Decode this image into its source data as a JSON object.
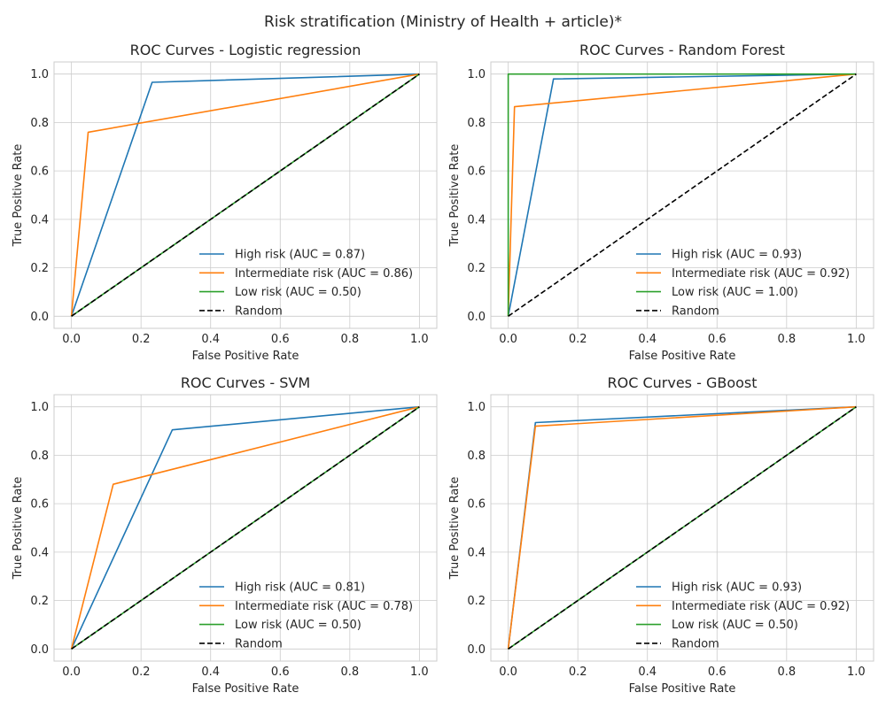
{
  "figure": {
    "suptitle": "Risk stratification (Ministry of Health + article)*"
  },
  "chart_data": [
    {
      "type": "line",
      "title": "ROC Curves - Logistic regression",
      "xlabel": "False Positive Rate",
      "ylabel": "True Positive Rate",
      "xlim": [
        -0.05,
        1.05
      ],
      "ylim": [
        -0.05,
        1.05
      ],
      "xticks": [
        "0.0",
        "0.2",
        "0.4",
        "0.6",
        "0.8",
        "1.0"
      ],
      "yticks": [
        "0.0",
        "0.2",
        "0.4",
        "0.6",
        "0.8",
        "1.0"
      ],
      "grid": true,
      "legend": "lower right",
      "series": [
        {
          "name": "High risk (AUC = 0.87)",
          "color": "#1f77b4",
          "x": [
            0,
            0.232,
            1
          ],
          "y": [
            0,
            0.966,
            1
          ]
        },
        {
          "name": "Intermediate risk (AUC = 0.86)",
          "color": "#ff7f0e",
          "x": [
            0,
            0.048,
            1
          ],
          "y": [
            0,
            0.76,
            1
          ]
        },
        {
          "name": "Low risk (AUC = 0.50)",
          "color": "#2ca02c",
          "x": [
            0,
            1
          ],
          "y": [
            0,
            1
          ]
        },
        {
          "name": "Random",
          "color": "#000000",
          "dashed": true,
          "x": [
            0,
            1
          ],
          "y": [
            0,
            1
          ]
        }
      ]
    },
    {
      "type": "line",
      "title": "ROC Curves - Random Forest",
      "xlabel": "False Positive Rate",
      "ylabel": "True Positive Rate",
      "xlim": [
        -0.05,
        1.05
      ],
      "ylim": [
        -0.05,
        1.05
      ],
      "xticks": [
        "0.0",
        "0.2",
        "0.4",
        "0.6",
        "0.8",
        "1.0"
      ],
      "yticks": [
        "0.0",
        "0.2",
        "0.4",
        "0.6",
        "0.8",
        "1.0"
      ],
      "grid": true,
      "legend": "lower right",
      "series": [
        {
          "name": "High risk (AUC = 0.93)",
          "color": "#1f77b4",
          "x": [
            0,
            0.13,
            1
          ],
          "y": [
            0,
            0.98,
            1
          ]
        },
        {
          "name": "Intermediate risk (AUC = 0.92)",
          "color": "#ff7f0e",
          "x": [
            0,
            0.018,
            1
          ],
          "y": [
            0,
            0.865,
            1
          ]
        },
        {
          "name": "Low risk (AUC = 1.00)",
          "color": "#2ca02c",
          "x": [
            0,
            0,
            1
          ],
          "y": [
            0,
            1,
            1
          ]
        },
        {
          "name": "Random",
          "color": "#000000",
          "dashed": true,
          "x": [
            0,
            1
          ],
          "y": [
            0,
            1
          ]
        }
      ]
    },
    {
      "type": "line",
      "title": "ROC Curves - SVM",
      "xlabel": "False Positive Rate",
      "ylabel": "True Positive Rate",
      "xlim": [
        -0.05,
        1.05
      ],
      "ylim": [
        -0.05,
        1.05
      ],
      "xticks": [
        "0.0",
        "0.2",
        "0.4",
        "0.6",
        "0.8",
        "1.0"
      ],
      "yticks": [
        "0.0",
        "0.2",
        "0.4",
        "0.6",
        "0.8",
        "1.0"
      ],
      "grid": true,
      "legend": "lower right",
      "series": [
        {
          "name": "High risk (AUC = 0.81)",
          "color": "#1f77b4",
          "x": [
            0,
            0.29,
            1
          ],
          "y": [
            0,
            0.905,
            1
          ]
        },
        {
          "name": "Intermediate risk (AUC = 0.78)",
          "color": "#ff7f0e",
          "x": [
            0,
            0.12,
            1
          ],
          "y": [
            0,
            0.68,
            1
          ]
        },
        {
          "name": "Low risk (AUC = 0.50)",
          "color": "#2ca02c",
          "x": [
            0,
            1
          ],
          "y": [
            0,
            1
          ]
        },
        {
          "name": "Random",
          "color": "#000000",
          "dashed": true,
          "x": [
            0,
            1
          ],
          "y": [
            0,
            1
          ]
        }
      ]
    },
    {
      "type": "line",
      "title": "ROC Curves - GBoost",
      "xlabel": "False Positive Rate",
      "ylabel": "True Positive Rate",
      "xlim": [
        -0.05,
        1.05
      ],
      "ylim": [
        -0.05,
        1.05
      ],
      "xticks": [
        "0.0",
        "0.2",
        "0.4",
        "0.6",
        "0.8",
        "1.0"
      ],
      "yticks": [
        "0.0",
        "0.2",
        "0.4",
        "0.6",
        "0.8",
        "1.0"
      ],
      "grid": true,
      "legend": "lower right",
      "series": [
        {
          "name": "High risk (AUC = 0.93)",
          "color": "#1f77b4",
          "x": [
            0,
            0.078,
            1
          ],
          "y": [
            0,
            0.935,
            1
          ]
        },
        {
          "name": "Intermediate risk (AUC = 0.92)",
          "color": "#ff7f0e",
          "x": [
            0,
            0.078,
            1
          ],
          "y": [
            0,
            0.92,
            1
          ]
        },
        {
          "name": "Low risk (AUC = 0.50)",
          "color": "#2ca02c",
          "x": [
            0,
            1
          ],
          "y": [
            0,
            1
          ]
        },
        {
          "name": "Random",
          "color": "#000000",
          "dashed": true,
          "x": [
            0,
            1
          ],
          "y": [
            0,
            1
          ]
        }
      ]
    }
  ]
}
